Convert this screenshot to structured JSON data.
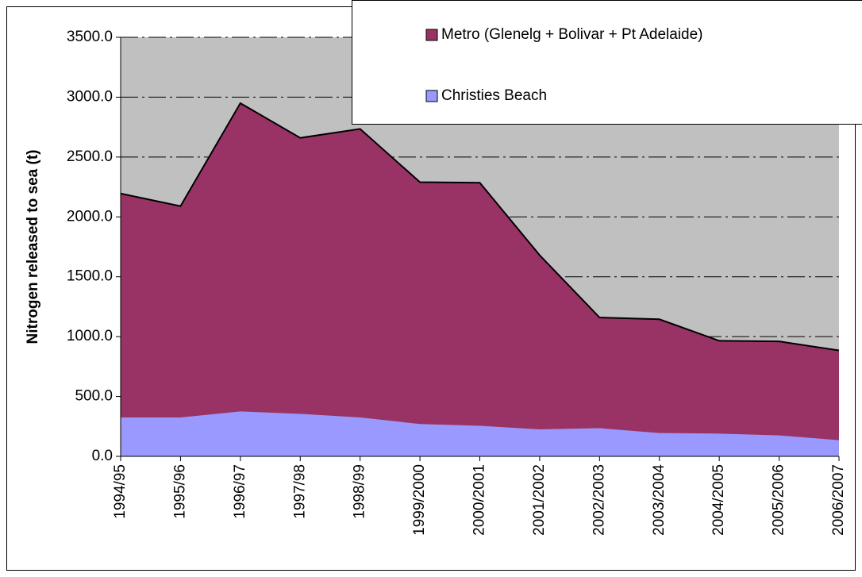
{
  "chart_data": {
    "type": "stacked-area",
    "y_label": "Nitrogen released to sea (t)",
    "categories": [
      "1994/95",
      "1995/96",
      "1996/97",
      "1997/98",
      "1998/99",
      "1999/2000",
      "2000/2001",
      "2001/2002",
      "2002/2003",
      "2003/2004",
      "2004/2005",
      "2005/2006",
      "2006/2007"
    ],
    "series": [
      {
        "name": "Metro (Glenelg + Bolivar + Pt Adelaide)",
        "color": "#993366",
        "values": [
          1870,
          1765,
          2575,
          2305,
          2410,
          2020,
          2030,
          1455,
          925,
          950,
          775,
          785,
          750
        ]
      },
      {
        "name": "Christies Beach",
        "color": "#9999ff",
        "values": [
          325,
          325,
          375,
          355,
          325,
          270,
          255,
          225,
          235,
          195,
          190,
          175,
          135
        ]
      }
    ],
    "ylim": [
      0,
      3500
    ],
    "yticks": [
      {
        "value": 0,
        "label": "0.0"
      },
      {
        "value": 500,
        "label": "500.0"
      },
      {
        "value": 1000,
        "label": "1000.0"
      },
      {
        "value": 1500,
        "label": "1500.0"
      },
      {
        "value": 2000,
        "label": "2000.0"
      },
      {
        "value": 2500,
        "label": "2500.0"
      },
      {
        "value": 3000,
        "label": "3000.0"
      },
      {
        "value": 3500,
        "label": "3500.0"
      }
    ],
    "grid": true,
    "background": "#c0c0c0"
  }
}
